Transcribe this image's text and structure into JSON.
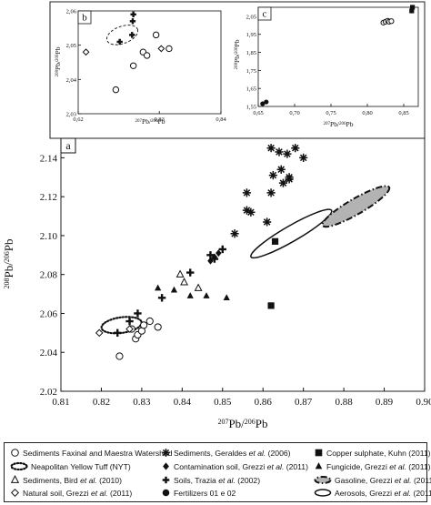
{
  "panel_labels": {
    "main": "a",
    "inset_b": "b",
    "inset_c": "c"
  },
  "axis_labels": {
    "main_y": "208Pb/206Pb",
    "main_x": "207Pb/206Pb",
    "inset_b_y": "208Pb/206Pb",
    "inset_b_x": "207Pb/206Pb",
    "inset_c_y": "208Pb/206Pb",
    "inset_c_x": "207Pb/206Pb"
  },
  "chart_data": [
    {
      "panel": "a",
      "type": "scatter",
      "xlabel": "207Pb/206Pb",
      "ylabel": "208Pb/206Pb",
      "xlim": [
        0.81,
        0.9
      ],
      "ylim": [
        2.02,
        2.15
      ],
      "xticks": [
        "0.81",
        "0.82",
        "0.83",
        "0.84",
        "0.85",
        "0.86",
        "0.87",
        "0.88",
        "0.89",
        "0.90"
      ],
      "yticks": [
        "2.02",
        "2.04",
        "2.06",
        "2.08",
        "2.10",
        "2.12",
        "2.14"
      ],
      "series": [
        {
          "name": "Sediments Faxinal and Maestra Watershed",
          "marker": "open-circle",
          "points": [
            [
              0.8245,
              2.038
            ],
            [
              0.8275,
              2.052
            ],
            [
              0.8285,
              2.047
            ],
            [
              0.829,
              2.049
            ],
            [
              0.83,
              2.051
            ],
            [
              0.8305,
              2.054
            ],
            [
              0.832,
              2.056
            ],
            [
              0.834,
              2.053
            ]
          ]
        },
        {
          "name": "Sediments, Bird et al. (2010)",
          "marker": "open-triangle",
          "points": [
            [
              0.8395,
              2.08
            ],
            [
              0.8405,
              2.076
            ],
            [
              0.844,
              2.073
            ]
          ]
        },
        {
          "name": "Natural soil, Grezzi et al. (2011)",
          "marker": "open-diamond",
          "points": [
            [
              0.8195,
              2.05
            ],
            [
              0.827,
              2.052
            ]
          ]
        },
        {
          "name": "Sediments, Geraldes et al. (2006)",
          "marker": "asterisk",
          "points": [
            [
              0.853,
              2.101
            ],
            [
              0.856,
              2.113
            ],
            [
              0.857,
              2.112
            ],
            [
              0.856,
              2.122
            ],
            [
              0.861,
              2.107
            ],
            [
              0.862,
              2.122
            ],
            [
              0.8625,
              2.131
            ],
            [
              0.8645,
              2.134
            ],
            [
              0.865,
              2.127
            ],
            [
              0.8665,
              2.13
            ],
            [
              0.866,
              2.142
            ],
            [
              0.864,
              2.143
            ],
            [
              0.862,
              2.145
            ],
            [
              0.868,
              2.145
            ],
            [
              0.87,
              2.14
            ],
            [
              0.8665,
              2.129
            ]
          ]
        },
        {
          "name": "Contamination soil, Grezzi et al. (2011)",
          "marker": "filled-diamond",
          "points": [
            [
              0.847,
              2.087
            ],
            [
              0.848,
              2.089
            ],
            [
              0.849,
              2.091
            ]
          ]
        },
        {
          "name": "Soils, Trazia et al. (2002)",
          "marker": "plus",
          "points": [
            [
              0.824,
              2.05
            ],
            [
              0.827,
              2.056
            ],
            [
              0.829,
              2.06
            ],
            [
              0.835,
              2.068
            ],
            [
              0.842,
              2.081
            ],
            [
              0.847,
              2.09
            ],
            [
              0.848,
              2.088
            ],
            [
              0.85,
              2.093
            ]
          ]
        },
        {
          "name": "Copper sulphate, Kuhn (2011)",
          "marker": "filled-square",
          "points": [
            [
              0.862,
              2.064
            ],
            [
              0.863,
              2.097
            ]
          ]
        },
        {
          "name": "Fungicide, Grezzi et al. (2011)",
          "marker": "filled-triangle",
          "points": [
            [
              0.834,
              2.073
            ],
            [
              0.838,
              2.072
            ],
            [
              0.842,
              2.069
            ],
            [
              0.846,
              2.069
            ],
            [
              0.851,
              2.068
            ]
          ]
        },
        {
          "name": "Fertilizers 01 e 02",
          "marker": "filled-circle",
          "points": []
        }
      ],
      "regions": [
        {
          "name": "Neapolitan Yellow Tuff (NYT)",
          "style": "dotted-ellipse",
          "center": [
            0.825,
            2.054
          ],
          "radii": [
            0.005,
            0.004
          ]
        },
        {
          "name": "Aerosols, Grezzi et al. (2011)",
          "style": "solid-ellipse",
          "center": [
            0.867,
            2.101
          ],
          "radii": [
            0.0115,
            0.004
          ]
        },
        {
          "name": "Gasoline, Grezzi et al. (2011)",
          "style": "gray-dashdot-ellipse",
          "center": [
            0.883,
            2.115
          ],
          "radii": [
            0.0095,
            0.004
          ]
        }
      ]
    },
    {
      "panel": "b",
      "type": "scatter",
      "xlabel": "207Pb/206Pb",
      "ylabel": "208Pb/206Pb",
      "xlim": [
        0.62,
        0.84
      ],
      "ylim": [
        2.03,
        2.06
      ],
      "xticks": [
        "0,62",
        "0,83",
        "0,84"
      ],
      "yticks": [
        "2,03",
        "2,04",
        "2,05",
        "2,06"
      ],
      "series": [
        {
          "name": "open-circle",
          "points": [
            [
              0.678,
              2.037
            ],
            [
              0.705,
              2.044
            ],
            [
              0.72,
              2.048
            ],
            [
              0.726,
              2.047
            ],
            [
              0.76,
              2.049
            ],
            [
              0.74,
              2.053
            ]
          ]
        },
        {
          "name": "plus",
          "points": [
            [
              0.684,
              2.051
            ],
            [
              0.703,
              2.053
            ],
            [
              0.704,
              2.057
            ],
            [
              0.705,
              2.059
            ]
          ]
        },
        {
          "name": "open-diamond",
          "points": [
            [
              0.632,
              2.048
            ],
            [
              0.748,
              2.049
            ]
          ]
        }
      ],
      "regions": [
        {
          "style": "dashed-ellipse",
          "center": [
            0.688,
            2.053
          ],
          "radii": [
            0.025,
            0.0025
          ]
        }
      ]
    },
    {
      "panel": "c",
      "type": "scatter",
      "xlabel": "207Pb/206Pb",
      "ylabel": "208Pb/206Pb",
      "xlim": [
        0.65,
        0.87
      ],
      "ylim": [
        1.55,
        2.1
      ],
      "xticks": [
        "0,65",
        "0,70",
        "0,75",
        "0,80",
        "0,85"
      ],
      "yticks": [
        "1,55",
        "1,65",
        "1,75",
        "1,85",
        "1,95",
        "2,05"
      ],
      "series": [
        {
          "name": "filled-circle",
          "points": [
            [
              0.656,
              1.565
            ],
            [
              0.661,
              1.575
            ]
          ]
        },
        {
          "name": "open-circle-cluster",
          "points": [
            [
              0.822,
              2.015
            ],
            [
              0.825,
              2.02
            ],
            [
              0.828,
              2.025
            ],
            [
              0.83,
              2.02
            ],
            [
              0.833,
              2.023
            ]
          ]
        },
        {
          "name": "filled-square",
          "points": [
            [
              0.861,
              2.08
            ],
            [
              0.862,
              2.1
            ]
          ]
        }
      ]
    }
  ],
  "legend": [
    {
      "symbol": "open-circle",
      "text": "Sediments Faxinal and Maestra Watershed",
      "italic": "",
      "suffix": ""
    },
    {
      "symbol": "dotted-ellipse",
      "text": "Neapolitan Yellow Tuff (NYT)",
      "italic": "",
      "suffix": ""
    },
    {
      "symbol": "open-triangle",
      "text": "Sediments, Bird ",
      "italic": "et al.",
      "suffix": " (2010)"
    },
    {
      "symbol": "open-diamond",
      "text": "Natural soil, Grezzi ",
      "italic": "et al.",
      "suffix": " (2011)"
    },
    {
      "symbol": "asterisk",
      "text": "Sediments, Geraldes ",
      "italic": "et al.",
      "suffix": " (2006)"
    },
    {
      "symbol": "filled-diamond",
      "text": "Contamination soil, Grezzi ",
      "italic": "et al.",
      "suffix": " (2011)"
    },
    {
      "symbol": "plus",
      "text": "Soils, Trazia ",
      "italic": "et al.",
      "suffix": " (2002)"
    },
    {
      "symbol": "filled-circle",
      "text": "Fertilizers 01 e 02",
      "italic": "",
      "suffix": ""
    },
    {
      "symbol": "filled-square",
      "text": "Copper sulphate, Kuhn (2011)",
      "italic": "",
      "suffix": ""
    },
    {
      "symbol": "filled-triangle",
      "text": "Fungicide, Grezzi ",
      "italic": "et al.",
      "suffix": " (2011)"
    },
    {
      "symbol": "gray-dashdot-ellipse",
      "text": "Gasoline, Grezzi ",
      "italic": "et al.",
      "suffix": " (2011)"
    },
    {
      "symbol": "solid-ellipse",
      "text": "Aerosols, Grezzi ",
      "italic": "et al.",
      "suffix": " (2011)"
    }
  ]
}
